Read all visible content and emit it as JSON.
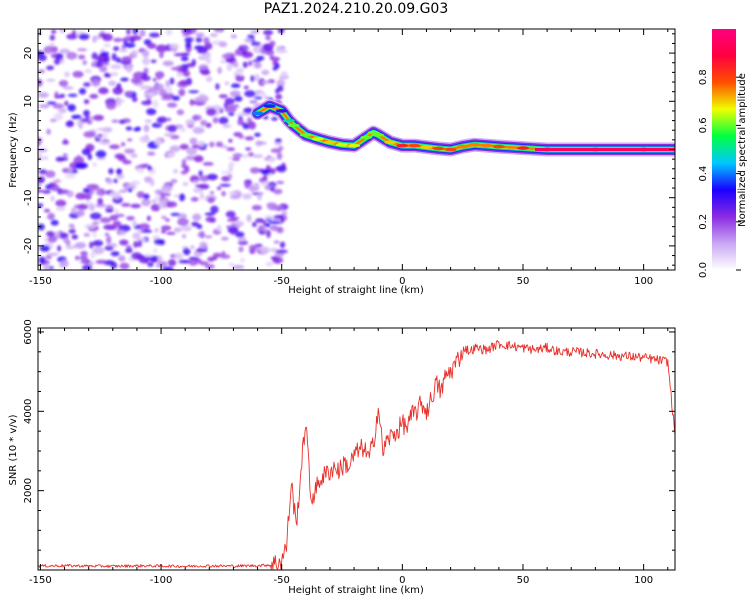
{
  "title": "PAZ1.2024.210.20.09.G03",
  "chart_data": [
    {
      "type": "heatmap",
      "title": "PAZ1.2024.210.20.09.G03",
      "xlabel": "Height of straight line (km)",
      "ylabel": "Frequency (Hz)",
      "xlim": [
        -151,
        113
      ],
      "ylim": [
        -25,
        25
      ],
      "xticks": [
        -150,
        -100,
        -50,
        0,
        50,
        100
      ],
      "yticks": [
        -20,
        -10,
        0,
        10,
        20
      ],
      "colorbar": {
        "label": "Normalized spectral amplitude",
        "range": [
          0,
          1
        ],
        "ticks": [
          0.0,
          0.2,
          0.4,
          0.6,
          0.8
        ],
        "tick_labels": [
          "0.0",
          "0.2",
          "0.4",
          "0.6",
          "0.8"
        ],
        "colormap": [
          "#ffffff",
          "#c9a6f5",
          "#8a2be2",
          "#1a00ff",
          "#00c8ff",
          "#00ff40",
          "#f0ff00",
          "#ff5000",
          "#ff0040",
          "#ff007f"
        ]
      },
      "ridge": {
        "name": "signal",
        "x": [
          -60,
          -55,
          -50,
          -47,
          -45,
          -40,
          -35,
          -30,
          -25,
          -20,
          -15,
          -12,
          -10,
          -5,
          0,
          5,
          10,
          15,
          20,
          25,
          30,
          35,
          40,
          50,
          60,
          80,
          100,
          113
        ],
        "y": [
          7.5,
          9,
          8,
          6,
          5,
          3,
          2.2,
          1.5,
          1.0,
          0.8,
          2.5,
          3.5,
          3.0,
          1.5,
          0.8,
          0.8,
          0.5,
          0.2,
          0.0,
          0.6,
          1.0,
          0.8,
          0.6,
          0.3,
          0.0,
          0.0,
          0.0,
          0.0
        ],
        "amplitude": [
          0.4,
          0.35,
          0.3,
          0.5,
          0.6,
          0.6,
          0.65,
          0.7,
          0.65,
          0.65,
          0.6,
          0.6,
          0.6,
          0.7,
          0.85,
          0.8,
          0.7,
          0.8,
          0.8,
          0.75,
          0.75,
          0.75,
          0.8,
          0.85,
          0.92,
          0.95,
          0.95,
          0.95
        ]
      },
      "noise_region": {
        "x_range": [
          -151,
          -52
        ],
        "amplitude": 0.18
      }
    },
    {
      "type": "line",
      "xlabel": "Height of straight line (km)",
      "ylabel": "SNR (10 * v/v)",
      "xlim": [
        -151,
        113
      ],
      "ylim": [
        0,
        6100
      ],
      "xticks": [
        -150,
        -100,
        -50,
        0,
        50,
        100
      ],
      "yticks": [
        2000,
        4000,
        6000
      ],
      "color": "#e8302a",
      "series": [
        {
          "x": [
            -151,
            -140,
            -130,
            -120,
            -110,
            -100,
            -90,
            -80,
            -70,
            -60,
            -55,
            -52,
            -50,
            -48,
            -46,
            -44,
            -42,
            -40,
            -38,
            -36,
            -34,
            -32,
            -30,
            -28,
            -26,
            -24,
            -22,
            -20,
            -18,
            -16,
            -14,
            -12,
            -10,
            -8,
            -6,
            -4,
            -2,
            0,
            2,
            4,
            6,
            8,
            10,
            12,
            14,
            16,
            18,
            20,
            22,
            24,
            26,
            28,
            30,
            35,
            40,
            45,
            50,
            55,
            60,
            65,
            70,
            75,
            80,
            85,
            90,
            95,
            100,
            105,
            110,
            113
          ],
          "values": [
            100,
            110,
            100,
            95,
            105,
            100,
            95,
            105,
            100,
            110,
            130,
            180,
            250,
            600,
            2200,
            1100,
            2500,
            3800,
            1800,
            2000,
            2300,
            2400,
            2500,
            2600,
            2500,
            2700,
            2600,
            2900,
            3000,
            3100,
            2800,
            3200,
            4100,
            3000,
            3300,
            3400,
            3500,
            3700,
            3600,
            3900,
            4000,
            4200,
            4000,
            4300,
            4700,
            4500,
            4900,
            5000,
            5200,
            5400,
            5600,
            5500,
            5600,
            5550,
            5700,
            5650,
            5600,
            5550,
            5600,
            5500,
            5500,
            5480,
            5450,
            5420,
            5400,
            5380,
            5350,
            5300,
            5250,
            3400
          ]
        }
      ]
    }
  ]
}
